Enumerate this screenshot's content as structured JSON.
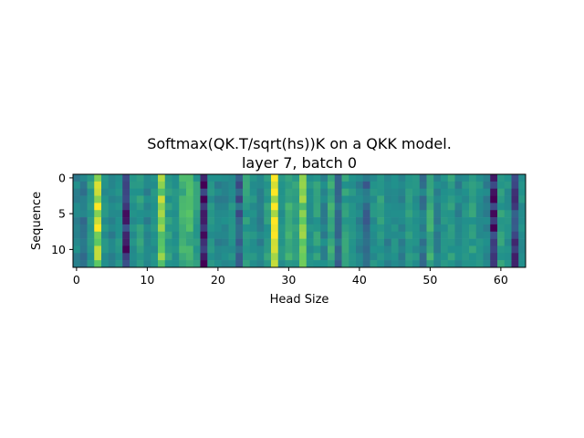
{
  "chart_data": {
    "type": "heatmap",
    "title": "Softmax(QK.T/sqrt(hs))K on a QKK model.",
    "subtitle": "layer 7, batch 0",
    "xlabel": "Head Size",
    "ylabel": "Sequence",
    "x_ticks": [
      "0",
      "10",
      "20",
      "30",
      "40",
      "50",
      "60"
    ],
    "y_ticks": [
      "0",
      "5",
      "10"
    ],
    "x_tick_values": [
      0,
      10,
      20,
      30,
      40,
      50,
      60
    ],
    "y_tick_values": [
      0,
      5,
      10
    ],
    "xlim": [
      -0.5,
      63.5
    ],
    "ylim": [
      12.5,
      -0.5
    ],
    "colormap": "viridis",
    "grid": false,
    "column_profile": [
      0.45,
      0.4,
      0.55,
      0.9,
      0.5,
      0.45,
      0.5,
      0.15,
      0.5,
      0.55,
      0.45,
      0.5,
      0.8,
      0.55,
      0.5,
      0.65,
      0.65,
      0.55,
      0.05,
      0.5,
      0.45,
      0.45,
      0.5,
      0.3,
      0.55,
      0.5,
      0.45,
      0.55,
      0.95,
      0.5,
      0.6,
      0.55,
      0.75,
      0.5,
      0.55,
      0.45,
      0.6,
      0.35,
      0.55,
      0.5,
      0.45,
      0.35,
      0.5,
      0.55,
      0.45,
      0.5,
      0.45,
      0.55,
      0.5,
      0.4,
      0.6,
      0.45,
      0.5,
      0.55,
      0.45,
      0.5,
      0.55,
      0.5,
      0.45,
      0.1,
      0.55,
      0.5,
      0.2,
      0.5
    ]
  }
}
